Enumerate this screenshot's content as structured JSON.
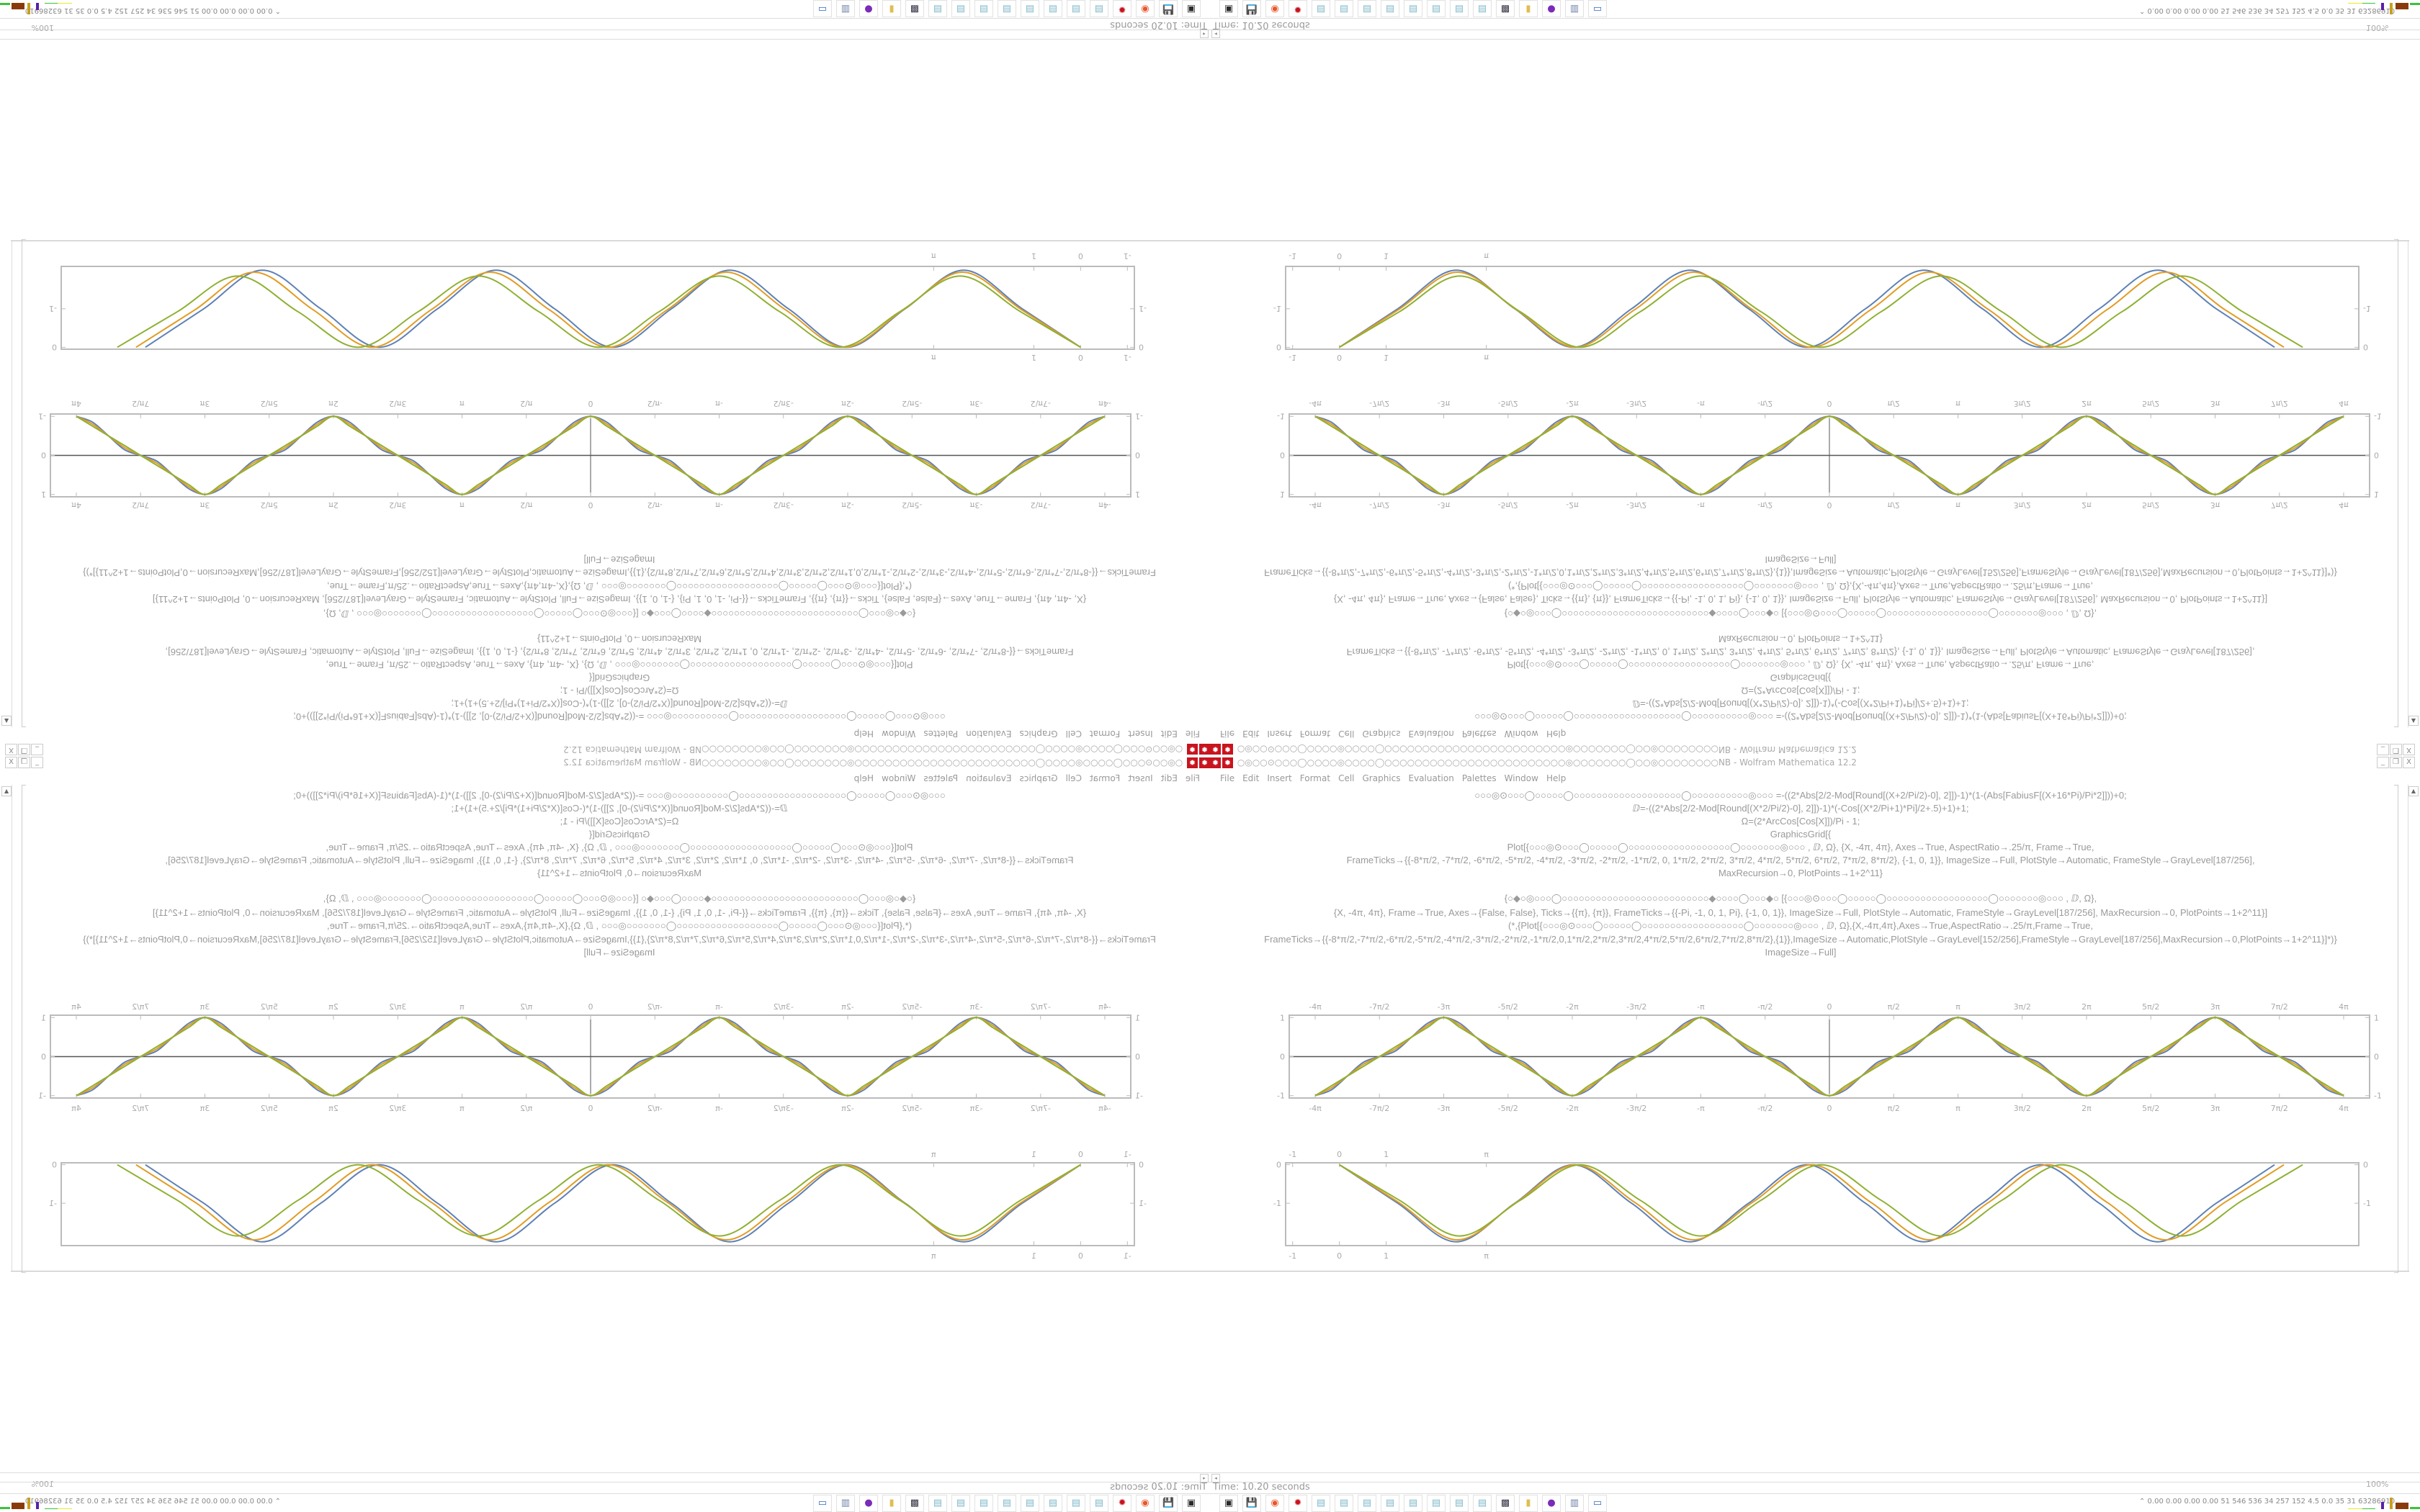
{
  "window": {
    "title": "○◎○○⊙○○○◯○○○○◎○○○○◯○○○○○○○○○○○○○○○○○○○○○○○○◎○○○○○○○◯○○◎○○○○○○○○NB - Wolfram Mathematica 12.2",
    "app_icon": "mathematica-gear-icon",
    "controls": {
      "minimize": "_",
      "restore": "❐",
      "close": "X"
    }
  },
  "menu": [
    "File",
    "Edit",
    "Insert",
    "Format",
    "Cell",
    "Graphics",
    "Evaluation",
    "Palettes",
    "Window",
    "Help"
  ],
  "code_lines": [
    "○○○◎⊙○○○◯○○○○○◯○○○○○○○○○○○○○○○○○○○◯○○○○○○○○○○◎○○○ =-((2*Abs[2/2-Mod[Round[(X+2/Pi/2)-0], 2]])-1)*(1-(Abs[FabiusF[(X+16*Pi)/Pi*2]]))+0;",
    "ⅅ=-((2*Abs[2/2-Mod[Round[(X*2/Pi/2)-0], 2]])-1)*(-Cos[(X*2/Pi+1)*Pi]/2+.5)+1)+1;",
    "Ω=(2*ArcCos[Cos[X]])/Pi - 1;",
    "GraphicsGrid[{",
    "Plot[{○○○◎⊙○○○◯○○○○○◯○○○○○○○○○○○○○○○○○○◯○○○○○○○◎○○○ , ⅅ, Ω}, {X, -4π, 4π}, Axes→True, AspectRatio→.25/π, Frame→True,",
    "FrameTicks→{{-8*π/2, -7*π/2, -6*π/2, -5*π/2, -4*π/2, -3*π/2, -2*π/2, -1*π/2, 0, 1*π/2, 2*π/2, 3*π/2, 4*π/2, 5*π/2, 6*π/2, 7*π/2, 8*π/2}, {-1, 0, 1}}, ImageSize→Full, PlotStyle→Automatic, FrameStyle→GrayLevel[187/256],",
    "MaxRecursion→0, PlotPoints→1+2^11}",
    "{○◆○◎○○○◯○○○○○○○○○○○○○○○○○○○○○○○○○○◆○○○○◯○○○◆○ [{○○○◎⊙○○○◯○○○○○◯○○○○○○○○○○○○○○○○○○◯○○○○○○○◎○○○ , ⅅ, Ω},",
    "{X, -4π, 4π}, Frame→True, Axes→{False, False}, Ticks→{{π}, {π}}, FrameTicks→{{-Pi, -1, 0, 1, Pi}, {-1, 0, 1}}, ImageSize→Full, PlotStyle→Automatic, FrameStyle→GrayLevel[187/256], MaxRecursion→0, PlotPoints→1+2^11}]",
    "(*,{Plot[{○○○◎⊙○○○◯○○○○○◯○○○○○○○○○○○○○○○○○○◯○○○○○○○◎○○○ , ⅅ, Ω},{X,-4π,4π},Axes→True,AspectRatio→.25/π,Frame→True,",
    "FrameTicks→{{-8*π/2,-7*π/2,-6*π/2,-5*π/2,-4*π/2,-3*π/2,-2*π/2,-1*π/2,0,1*π/2,2*π/2,3*π/2,4*π/2,5*π/2,6*π/2,7*π/2,8*π/2},{1}},ImageSize→Automatic,PlotStyle→GrayLevel[152/256],FrameStyle→GrayLevel[187/256],MaxRecursion→0,PlotPoints→1+2^11}]*)}",
    "ImageSize→Full]"
  ],
  "status": {
    "text": "Time: 10.20 seconds",
    "zoom": "100%"
  },
  "tray": {
    "text": "⌃ 0.00 0.00 0.00 0.00 51 546 536 34 257 152 4.5 0.0 35 31 63286910"
  },
  "taskbar": [
    {
      "icon": "terminal-icon",
      "glyph": "▣",
      "color": "#2a2a2a"
    },
    {
      "icon": "floppy-64-icon",
      "glyph": "💾",
      "color": "#1d3f9a"
    },
    {
      "icon": "firefox-icon",
      "glyph": "◉",
      "color": "#e8562a"
    },
    {
      "icon": "mathematica-icon",
      "glyph": "✹",
      "color": "#c8141e"
    },
    {
      "icon": "notepad-icon",
      "glyph": "▤",
      "color": "#7fb7c9"
    },
    {
      "icon": "notepad-icon",
      "glyph": "▤",
      "color": "#7fb7c9"
    },
    {
      "icon": "notepad-icon",
      "glyph": "▤",
      "color": "#7fb7c9"
    },
    {
      "icon": "notepad-icon",
      "glyph": "▤",
      "color": "#7fb7c9"
    },
    {
      "icon": "notepad-icon",
      "glyph": "▤",
      "color": "#7fb7c9"
    },
    {
      "icon": "notepad-icon",
      "glyph": "▤",
      "color": "#7fb7c9"
    },
    {
      "icon": "notepad-icon",
      "glyph": "▤",
      "color": "#7fb7c9"
    },
    {
      "icon": "notepad-icon",
      "glyph": "▤",
      "color": "#7fb7c9"
    },
    {
      "icon": "webcam-monitor-icon",
      "glyph": "▩",
      "color": "#334"
    },
    {
      "icon": "folder-icon",
      "glyph": "▮",
      "color": "#e0bd52"
    },
    {
      "icon": "purple-app-icon",
      "glyph": "●",
      "color": "#7a2bb8"
    },
    {
      "icon": "document-icon",
      "glyph": "▥",
      "color": "#6b7fa6"
    },
    {
      "icon": "window-icon",
      "glyph": "▭",
      "color": "#2b6cc4"
    }
  ],
  "colors": {
    "series1": "#5E81B5",
    "series2": "#E19C24",
    "series3": "#8FB032",
    "frame": "#BBBBBB",
    "axis": "#555555"
  },
  "chart_data": [
    {
      "type": "line",
      "xlim": [
        -13.2,
        13.2
      ],
      "ylim": [
        -1.06,
        1.06
      ],
      "axes": true,
      "x_ticks": [
        "-4π",
        "-7π/2",
        "-3π",
        "-5π/2",
        "-2π",
        "-3π/2",
        "-π",
        "-π/2",
        "0",
        "π/2",
        "π",
        "3π/2",
        "2π",
        "5π/2",
        "3π",
        "7π/2",
        "4π"
      ],
      "x_tick_values": [
        -12.566,
        -10.996,
        -9.425,
        -7.854,
        -6.283,
        -4.712,
        -3.142,
        -1.571,
        0,
        1.571,
        3.142,
        4.712,
        6.283,
        7.854,
        9.425,
        10.996,
        12.566
      ],
      "y_ticks": [
        "-1",
        "0",
        "1"
      ],
      "y_tick_values": [
        -1,
        0,
        1
      ],
      "x": [
        -12.566,
        -12.174,
        -11.781,
        -11.388,
        -10.996,
        -10.603,
        -10.21,
        -9.817,
        -9.425,
        -9.032,
        -8.639,
        -8.247,
        -7.854,
        -7.461,
        -7.069,
        -6.676,
        -6.283,
        -5.89,
        -5.498,
        -5.105,
        -4.712,
        -4.32,
        -3.927,
        -3.534,
        -3.142,
        -2.749,
        -2.356,
        -1.963,
        -1.571,
        -1.178,
        -0.785,
        -0.393,
        0,
        0.393,
        0.785,
        1.178,
        1.571,
        1.963,
        2.356,
        2.749,
        3.142,
        3.534,
        3.927,
        4.32,
        4.712,
        5.105,
        5.498,
        5.89,
        6.283,
        6.676,
        7.069,
        7.461,
        7.854,
        8.247,
        8.639,
        9.032,
        9.425,
        9.817,
        10.21,
        10.603,
        10.996,
        11.388,
        11.781,
        12.174,
        12.566
      ],
      "series": [
        {
          "values": [
            -1,
            -0.854,
            -0.5,
            -0.146,
            0,
            0.146,
            0.5,
            0.854,
            1,
            0.854,
            0.5,
            0.146,
            0,
            -0.146,
            -0.5,
            -0.854,
            -1,
            -0.854,
            -0.5,
            -0.146,
            0,
            0.146,
            0.5,
            0.854,
            1,
            0.854,
            0.5,
            0.146,
            0,
            -0.146,
            -0.5,
            -0.854,
            -1,
            -0.854,
            -0.5,
            -0.146,
            0,
            0.146,
            0.5,
            0.854,
            1,
            0.854,
            0.5,
            0.146,
            0,
            -0.146,
            -0.5,
            -0.854,
            -1,
            -0.854,
            -0.5,
            -0.146,
            0,
            0.146,
            0.5,
            0.854,
            1,
            0.854,
            0.5,
            0.146,
            0,
            -0.146,
            -0.5,
            -0.854,
            -1
          ]
        },
        {
          "values": [
            -1,
            -0.802,
            -0.5,
            -0.198,
            0,
            0.198,
            0.5,
            0.802,
            1,
            0.802,
            0.5,
            0.198,
            0,
            -0.198,
            -0.5,
            -0.802,
            -1,
            -0.802,
            -0.5,
            -0.198,
            0,
            0.198,
            0.5,
            0.802,
            1,
            0.802,
            0.5,
            0.198,
            0,
            -0.198,
            -0.5,
            -0.802,
            -1,
            -0.802,
            -0.5,
            -0.198,
            0,
            0.198,
            0.5,
            0.802,
            1,
            0.802,
            0.5,
            0.198,
            0,
            -0.198,
            -0.5,
            -0.802,
            -1,
            -0.802,
            -0.5,
            -0.198,
            0,
            0.198,
            0.5,
            0.802,
            1,
            0.802,
            0.5,
            0.198,
            0,
            -0.198,
            -0.5,
            -0.802,
            -1
          ]
        },
        {
          "values": [
            -1,
            -0.75,
            -0.5,
            -0.25,
            0,
            0.25,
            0.5,
            0.75,
            1,
            0.75,
            0.5,
            0.25,
            0,
            -0.25,
            -0.5,
            -0.75,
            -1,
            -0.75,
            -0.5,
            -0.25,
            0,
            0.25,
            0.5,
            0.75,
            1,
            0.75,
            0.5,
            0.25,
            0,
            -0.25,
            -0.5,
            -0.75,
            -1,
            -0.75,
            -0.5,
            -0.25,
            0,
            0.25,
            0.5,
            0.75,
            1,
            0.75,
            0.5,
            0.25,
            0,
            -0.25,
            -0.5,
            -0.75,
            -1,
            -0.75,
            -0.5,
            -0.25,
            0,
            0.25,
            0.5,
            0.75,
            1,
            0.75,
            0.5,
            0.25,
            0,
            -0.25,
            -0.5,
            -0.75,
            -1
          ]
        }
      ]
    },
    {
      "type": "line",
      "xlim": [
        -1.15,
        21.8
      ],
      "ylim": [
        -2.1,
        0.05
      ],
      "axes": false,
      "x_ticks": [
        "-1",
        "0",
        "1",
        "π"
      ],
      "x_tick_values": [
        -1,
        0,
        1,
        3.142
      ],
      "y_ticks": [
        "0",
        "-1"
      ],
      "y_tick_values": [
        0,
        -1
      ],
      "series": [
        {
          "x": [
            0,
            1.25,
            2.5,
            3.75,
            5,
            6.25,
            7.5,
            8.75,
            10,
            11.25,
            12.5,
            13.75,
            15,
            16.25,
            17.5,
            18.75,
            20
          ],
          "values": [
            0,
            -1,
            -2,
            -1,
            0,
            -1,
            -2,
            -1,
            0,
            -1,
            -2,
            -1,
            0,
            -1,
            -2,
            -1,
            0
          ]
        },
        {
          "x": [
            0,
            1.263,
            2.525,
            3.788,
            5.05,
            6.313,
            7.575,
            8.838,
            10.1,
            11.363,
            12.625,
            13.888,
            15.15,
            16.413,
            17.675,
            18.938,
            20.2
          ],
          "values": [
            0,
            -0.975,
            -1.95,
            -0.975,
            0,
            -0.975,
            -1.95,
            -0.975,
            0,
            -0.975,
            -1.95,
            -0.975,
            0,
            -0.975,
            -1.95,
            -0.975,
            0
          ]
        },
        {
          "x": [
            0,
            1.288,
            2.575,
            3.863,
            5.15,
            6.438,
            7.725,
            9.013,
            10.3,
            11.588,
            12.875,
            14.163,
            15.45,
            16.738,
            18.025,
            19.313,
            20.6
          ],
          "values": [
            0,
            -0.925,
            -1.85,
            -0.925,
            0,
            -0.925,
            -1.85,
            -0.925,
            0,
            -0.925,
            -1.85,
            -0.925,
            0,
            -0.925,
            -1.85,
            -0.925,
            0
          ]
        }
      ]
    }
  ]
}
